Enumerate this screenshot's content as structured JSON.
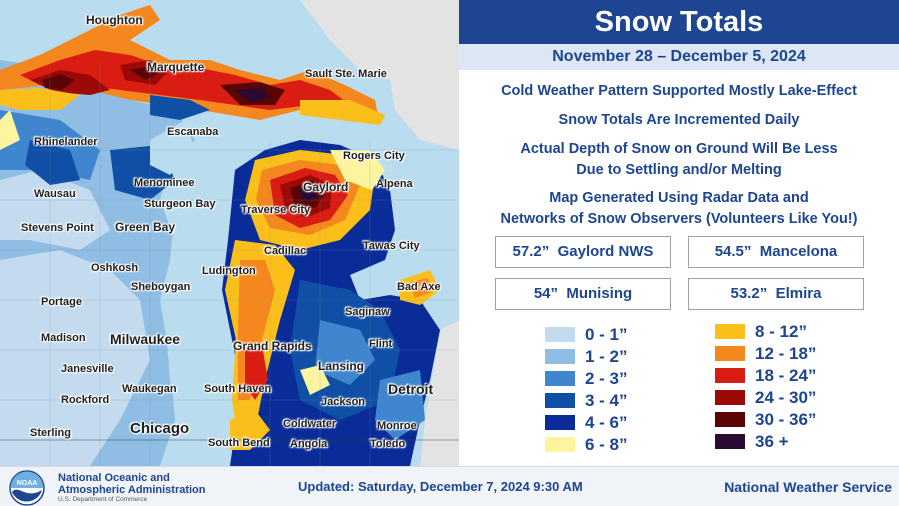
{
  "header": {
    "title": "Snow Totals",
    "date_range": "November 28 – December 5, 2024"
  },
  "notes": [
    "Cold Weather Pattern Supported Mostly Lake-Effect",
    "Snow Totals Are Incremented Daily",
    "Actual Depth of Snow on Ground Will Be Less",
    "Due to Settling and/or Melting",
    "Map Generated Using Radar Data and",
    "Networks of Snow Observers (Volunteers Like You!)"
  ],
  "top_totals": [
    {
      "value": "57.2”",
      "place": "Gaylord NWS"
    },
    {
      "value": "54.5”",
      "place": "Mancelona"
    },
    {
      "value": "54”",
      "place": "Munising"
    },
    {
      "value": "53.2”",
      "place": "Elmira"
    }
  ],
  "legend": [
    {
      "label": "0 - 1”",
      "color": "#c4dbef"
    },
    {
      "label": "1 - 2”",
      "color": "#8fbde4"
    },
    {
      "label": "2 - 3”",
      "color": "#3f86cf"
    },
    {
      "label": "3 - 4”",
      "color": "#0f4fa5"
    },
    {
      "label": "4 - 6”",
      "color": "#0a2c98"
    },
    {
      "label": "6 - 8”",
      "color": "#fdf4a0"
    },
    {
      "label": "8 - 12”",
      "color": "#fbbf1c"
    },
    {
      "label": "12 - 18”",
      "color": "#f5871f"
    },
    {
      "label": "18 - 24”",
      "color": "#d91d12"
    },
    {
      "label": "24 - 30”",
      "color": "#9b0a06"
    },
    {
      "label": "30 - 36”",
      "color": "#5a0505"
    },
    {
      "label": "36 +",
      "color": "#2a0a33"
    }
  ],
  "map": {
    "cities": [
      "Houghton",
      "Marquette",
      "Sault Ste. Marie",
      "Escanaba",
      "Rhinelander",
      "Rogers City",
      "Gaylord",
      "Alpena",
      "Menominee",
      "Wausau",
      "Sturgeon Bay",
      "Traverse City",
      "Stevens Point",
      "Green Bay",
      "Cadillac",
      "Tawas City",
      "Oshkosh",
      "Ludington",
      "Sheboygan",
      "Bad Axe",
      "Portage",
      "Saginaw",
      "Madison",
      "Milwaukee",
      "Grand Rapids",
      "Flint",
      "Janesville",
      "Lansing",
      "Waukegan",
      "South Haven",
      "Detroit",
      "Rockford",
      "Jackson",
      "Sterling",
      "Chicago",
      "Coldwater",
      "Monroe",
      "South Bend",
      "Angola",
      "Toledo"
    ]
  },
  "footer": {
    "noaa_logo_text": "NOAA",
    "org_name_line1": "National Oceanic and",
    "org_name_line2": "Atmospheric Administration",
    "org_dept": "U.S. Department of Commerce",
    "updated": "Updated: Saturday, December 7, 2024 9:30 AM",
    "agency": "National Weather Service"
  }
}
